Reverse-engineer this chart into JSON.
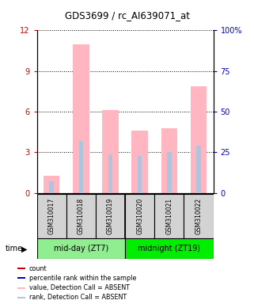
{
  "title": "GDS3699 / rc_AI639071_at",
  "samples": [
    "GSM310017",
    "GSM310018",
    "GSM310019",
    "GSM310020",
    "GSM310021",
    "GSM310022"
  ],
  "bar_heights_value": [
    1.3,
    11.0,
    6.1,
    4.6,
    4.8,
    7.9
  ],
  "bar_heights_rank": [
    7.0,
    32.0,
    24.0,
    23.0,
    25.0,
    29.0
  ],
  "bar_color_value": "#FFB6C1",
  "bar_color_rank": "#B0C4DE",
  "ylim_left": [
    0,
    12
  ],
  "ylim_right": [
    0,
    100
  ],
  "yticks_left": [
    0,
    3,
    6,
    9,
    12
  ],
  "yticks_right": [
    0,
    25,
    50,
    75,
    100
  ],
  "ytick_labels_right": [
    "0",
    "25",
    "50",
    "75",
    "100%"
  ],
  "left_tick_color": "#CC0000",
  "right_tick_color": "#0000CC",
  "legend_items": [
    {
      "color": "#CC0000",
      "label": "count"
    },
    {
      "color": "#0000CC",
      "label": "percentile rank within the sample"
    },
    {
      "color": "#FFB6C1",
      "label": "value, Detection Call = ABSENT"
    },
    {
      "color": "#B0C4DE",
      "label": "rank, Detection Call = ABSENT"
    }
  ],
  "time_label": "time",
  "group_label_1": "mid-day (ZT7)",
  "group_label_2": "midnight (ZT19)",
  "group_color_1": "#90EE90",
  "group_color_2": "#00EE00"
}
